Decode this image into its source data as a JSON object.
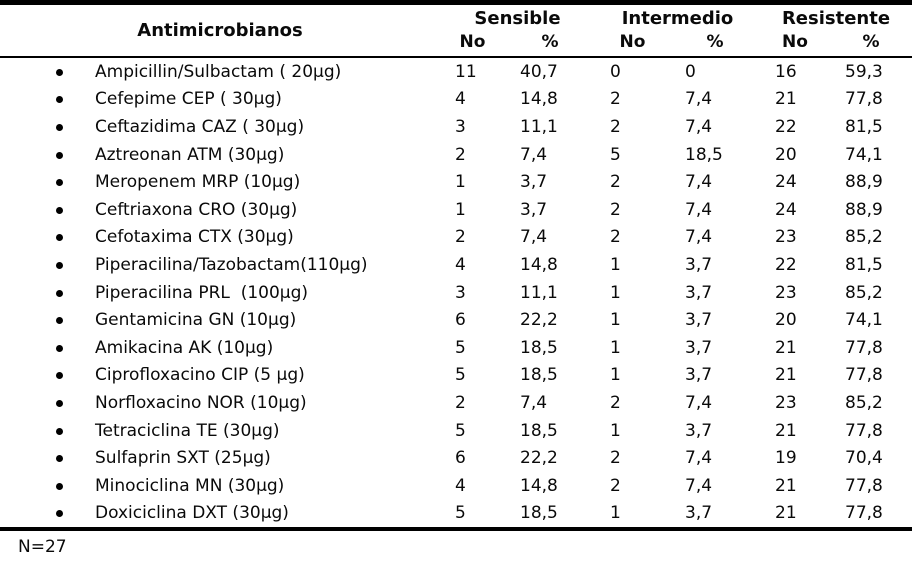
{
  "table": {
    "headers": {
      "antimicrobianos": "Antimicrobianos",
      "sensible": "Sensible",
      "intermedio": "Intermedio",
      "resistente": "Resistente",
      "no": "No",
      "pct": "%"
    },
    "rows": [
      {
        "label": "Ampicillin/Sulbactam ( 20µg)",
        "sensible_no": "11",
        "sensible_pct": "40,7",
        "intermedio_no": "0",
        "intermedio_pct": "0",
        "resistente_no": "16",
        "resistente_pct": "59,3"
      },
      {
        "label": "Cefepime CEP ( 30µg)",
        "sensible_no": "4",
        "sensible_pct": "14,8",
        "intermedio_no": "2",
        "intermedio_pct": "7,4",
        "resistente_no": "21",
        "resistente_pct": "77,8"
      },
      {
        "label": "Ceftazidima CAZ ( 30µg)",
        "sensible_no": "3",
        "sensible_pct": "11,1",
        "intermedio_no": "2",
        "intermedio_pct": "7,4",
        "resistente_no": "22",
        "resistente_pct": "81,5"
      },
      {
        "label": "Aztreonan ATM (30µg)",
        "sensible_no": "2",
        "sensible_pct": "7,4",
        "intermedio_no": "5",
        "intermedio_pct": "18,5",
        "resistente_no": "20",
        "resistente_pct": "74,1"
      },
      {
        "label": "Meropenem MRP (10µg)",
        "sensible_no": "1",
        "sensible_pct": "3,7",
        "intermedio_no": "2",
        "intermedio_pct": "7,4",
        "resistente_no": "24",
        "resistente_pct": "88,9"
      },
      {
        "label": "Ceftriaxona CRO (30µg)",
        "sensible_no": "1",
        "sensible_pct": "3,7",
        "intermedio_no": "2",
        "intermedio_pct": "7,4",
        "resistente_no": "24",
        "resistente_pct": "88,9"
      },
      {
        "label": "Cefotaxima CTX (30µg)",
        "sensible_no": "2",
        "sensible_pct": "7,4",
        "intermedio_no": "2",
        "intermedio_pct": "7,4",
        "resistente_no": "23",
        "resistente_pct": "85,2"
      },
      {
        "label": "Piperacilina/Tazobactam(110µg)",
        "sensible_no": "4",
        "sensible_pct": "14,8",
        "intermedio_no": "1",
        "intermedio_pct": "3,7",
        "resistente_no": "22",
        "resistente_pct": "81,5"
      },
      {
        "label": "Piperacilina PRL  (100µg)",
        "sensible_no": "3",
        "sensible_pct": "11,1",
        "intermedio_no": "1",
        "intermedio_pct": "3,7",
        "resistente_no": "23",
        "resistente_pct": "85,2"
      },
      {
        "label": "Gentamicina GN (10µg)",
        "sensible_no": "6",
        "sensible_pct": "22,2",
        "intermedio_no": "1",
        "intermedio_pct": "3,7",
        "resistente_no": "20",
        "resistente_pct": "74,1"
      },
      {
        "label": "Amikacina AK (10µg)",
        "sensible_no": "5",
        "sensible_pct": "18,5",
        "intermedio_no": "1",
        "intermedio_pct": "3,7",
        "resistente_no": "21",
        "resistente_pct": "77,8"
      },
      {
        "label": "Ciprofloxacino CIP (5 µg)",
        "sensible_no": "5",
        "sensible_pct": "18,5",
        "intermedio_no": "1",
        "intermedio_pct": "3,7",
        "resistente_no": "21",
        "resistente_pct": "77,8"
      },
      {
        "label": "Norfloxacino NOR (10µg)",
        "sensible_no": "2",
        "sensible_pct": "7,4",
        "intermedio_no": "2",
        "intermedio_pct": "7,4",
        "resistente_no": "23",
        "resistente_pct": "85,2"
      },
      {
        "label": "Tetraciclina TE (30µg)",
        "sensible_no": "5",
        "sensible_pct": "18,5",
        "intermedio_no": "1",
        "intermedio_pct": "3,7",
        "resistente_no": "21",
        "resistente_pct": "77,8"
      },
      {
        "label": "Sulfaprin SXT (25µg)",
        "sensible_no": "6",
        "sensible_pct": "22,2",
        "intermedio_no": "2",
        "intermedio_pct": "7,4",
        "resistente_no": "19",
        "resistente_pct": "70,4"
      },
      {
        "label": "Minociclina MN (30µg)",
        "sensible_no": "4",
        "sensible_pct": "14,8",
        "intermedio_no": "2",
        "intermedio_pct": "7,4",
        "resistente_no": "21",
        "resistente_pct": "77,8"
      },
      {
        "label": "Doxiciclina DXT (30µg)",
        "sensible_no": "5",
        "sensible_pct": "18,5",
        "intermedio_no": "1",
        "intermedio_pct": "3,7",
        "resistente_no": "21",
        "resistente_pct": "77,8"
      }
    ]
  },
  "footer": {
    "sample_size": "N=27"
  },
  "colors": {
    "text": "#0a0a0a",
    "line": "#000000",
    "background": "#ffffff"
  }
}
